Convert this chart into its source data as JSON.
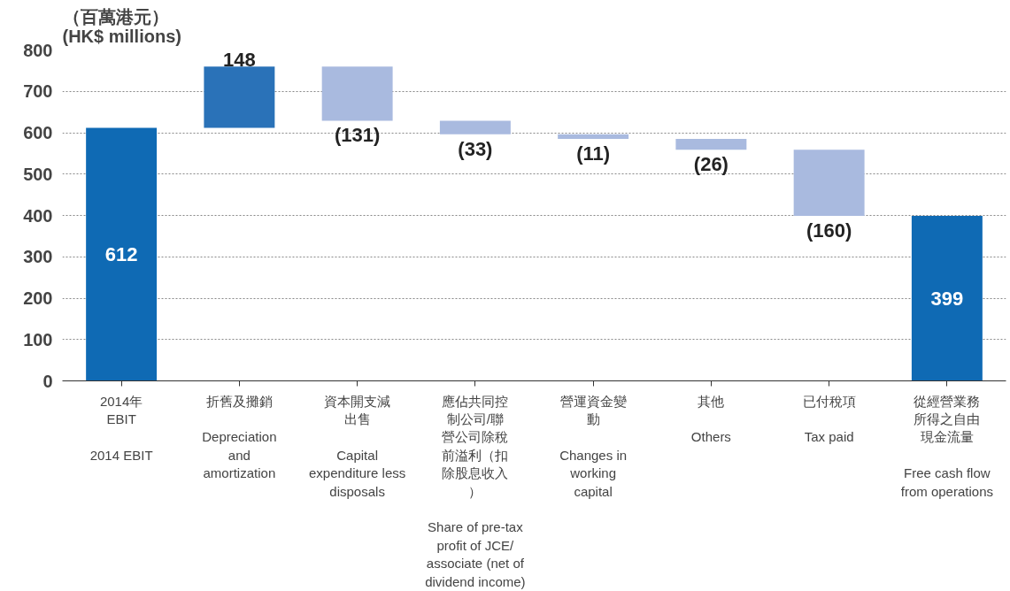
{
  "chart_data": {
    "type": "bar",
    "ylabel": "（百萬港元）\n(HK$ millions)",
    "categories": [
      "2014年\nEBIT\n\n2014 EBIT",
      "折舊及攤銷\n\nDepreciation\nand\namortization",
      "資本開支減出售\n\nCapital\nexpenditure less\ndisposals",
      "應佔共同控制公司/聯營公司除稅前溢利（扣除股息收入）\n\nShare of pre-tax\nprofit of JCE/\nassociate (net of\ndividend income)",
      "營運資金變動\n\nChanges in\nworking\ncapital",
      "其他\n\nOthers",
      "已付稅項\n\nTax paid",
      "從經營業務所得之自由現金流量\n\nFree cash flow\nfrom operations"
    ],
    "values": [
      612,
      148,
      -131,
      -33,
      -11,
      -26,
      -160,
      399
    ],
    "base": [
      0,
      612,
      760,
      629,
      596,
      585,
      559,
      0
    ],
    "colors": [
      "#0f6ab4",
      "#2a72b8",
      "#a9badf",
      "#a9badf",
      "#a9badf",
      "#a9badf",
      "#a9badf",
      "#0f6ab4"
    ],
    "value_labels": [
      "612",
      "148",
      "(131)",
      "(33)",
      "(11)",
      "(26)",
      "(160)",
      "399"
    ],
    "ylim": [
      0,
      800
    ],
    "yticks": [
      0,
      100,
      200,
      300,
      400,
      500,
      600,
      700,
      800
    ],
    "grid": "y"
  }
}
